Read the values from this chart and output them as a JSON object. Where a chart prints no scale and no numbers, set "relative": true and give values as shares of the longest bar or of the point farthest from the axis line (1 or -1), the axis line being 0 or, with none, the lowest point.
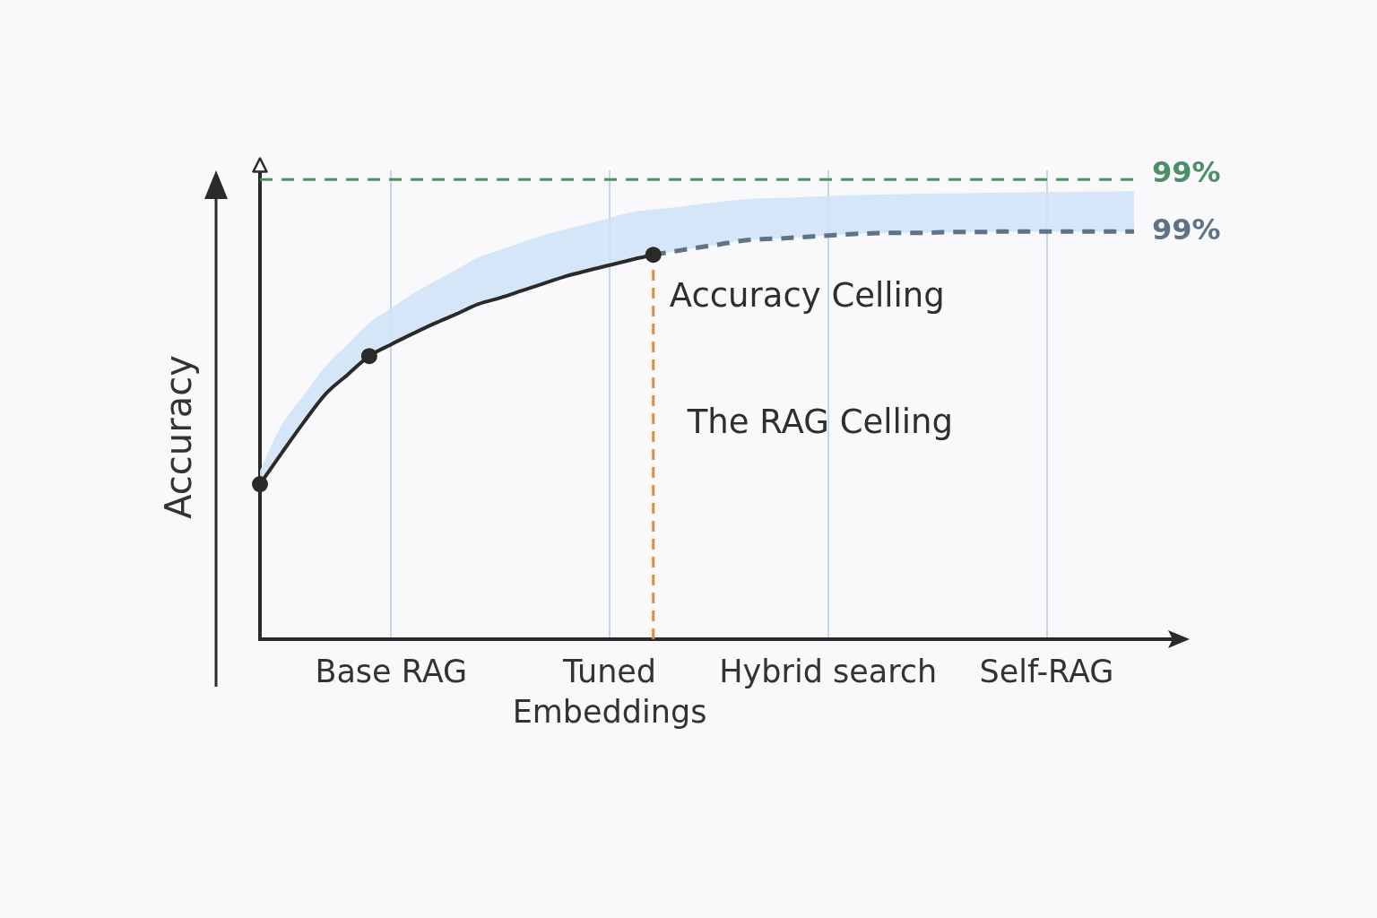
{
  "chart_data": {
    "type": "line",
    "relative": true,
    "ylabel": "Accuracy",
    "categories": [
      null,
      null,
      null,
      null,
      null,
      null,
      "Base RAG",
      null,
      null,
      null,
      null,
      null,
      null,
      null,
      null,
      null,
      "Tuned\nEmbeddings",
      null,
      null,
      null,
      null,
      null,
      null,
      null,
      null,
      null,
      "Hybrid search",
      null,
      null,
      null,
      null,
      null,
      null,
      null,
      null,
      null,
      "Self-RAG",
      null,
      null,
      null,
      null
    ],
    "grid": "x",
    "legend": false,
    "series": [
      {
        "type": "area",
        "color": "#cfe3f6",
        "values": [
          0.376,
          0.479,
          0.544,
          0.609,
          0.658,
          0.706,
          0.739,
          0.771,
          0.799,
          0.825,
          0.852,
          0.869,
          0.886,
          0.902,
          0.915,
          0.927,
          0.94,
          0.953,
          0.959,
          0.964,
          0.97,
          0.976,
          0.981,
          0.984,
          0.985,
          0.987,
          0.989,
          0.991,
          0.992,
          0.993,
          0.994,
          0.995,
          0.995,
          0.996,
          0.997,
          0.997,
          0.998,
          0.998,
          0.999,
          0.999,
          1.0
        ]
      },
      {
        "color": "#2a2a2a",
        "line_style": "solid",
        "marker": "none",
        "values": [
          0.346,
          0.416,
          0.484,
          0.547,
          0.59,
          0.632,
          0.658,
          0.682,
          0.705,
          0.726,
          0.748,
          0.762,
          0.778,
          0.794,
          0.81,
          0.823,
          0.835,
          0.847,
          0.858,
          null,
          null,
          null,
          null,
          null,
          null,
          null,
          null,
          null,
          null,
          null,
          null,
          null,
          null,
          null,
          null,
          null,
          null,
          null,
          null,
          null,
          null
        ]
      },
      {
        "name": "99%",
        "color": "#5f7386",
        "line_style": "dashed",
        "marker": "none",
        "values": [
          null,
          null,
          null,
          null,
          null,
          null,
          null,
          null,
          null,
          null,
          null,
          null,
          null,
          null,
          null,
          null,
          null,
          null,
          0.858,
          0.866,
          0.874,
          0.881,
          0.889,
          0.893,
          0.895,
          0.898,
          0.901,
          0.904,
          0.906,
          0.907,
          0.907,
          0.908,
          0.909,
          0.909,
          0.91,
          0.91,
          0.91,
          0.91,
          0.91,
          0.91,
          0.91
        ]
      },
      {
        "type": "scatter",
        "color": "#2a2a2a",
        "marker": "circle",
        "values": [
          0.346,
          null,
          null,
          null,
          null,
          0.632,
          null,
          null,
          null,
          null,
          null,
          null,
          null,
          null,
          null,
          null,
          null,
          null,
          0.858,
          null,
          null,
          null,
          null,
          null,
          null,
          null,
          null,
          null,
          null,
          null,
          null,
          null,
          null,
          null,
          null,
          null,
          null,
          null,
          null,
          null,
          null
        ]
      }
    ],
    "ref_lines": [
      {
        "axis": "y",
        "value": 1.026,
        "color": "#4a8f66",
        "line_style": "dashed"
      }
    ],
    "annotations": [
      "99%",
      "Accuracy Celling",
      "The RAG Celling"
    ]
  }
}
